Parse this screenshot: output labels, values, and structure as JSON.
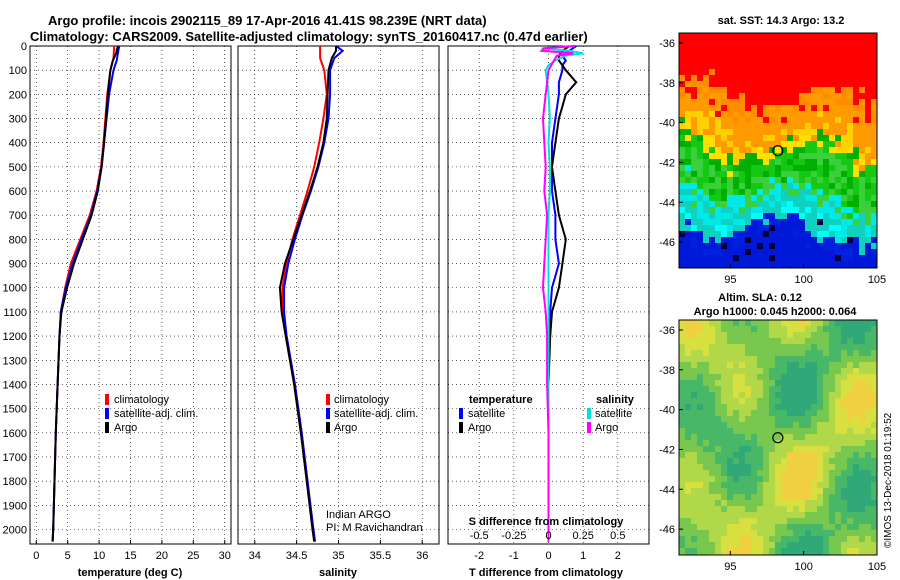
{
  "header": {
    "line1": "Argo profile: incois 2902115_89 17-Apr-2016 41.41S 98.239E (NRT data)",
    "line2": "Climatology: CARS2009. Satellite-adjusted climatology: synTS_20160417.nc (0.47d earlier)"
  },
  "colors": {
    "climatology": "#ff0000",
    "satellite_adj": "#0000ff",
    "argo": "#000000",
    "sal_satellite": "#00e0e0",
    "sal_argo": "#ff00ff"
  },
  "chart_data": [
    {
      "id": "temperature",
      "type": "line",
      "xlabel": "temperature (deg C)",
      "xlim": [
        -1,
        31
      ],
      "xticks": [
        0,
        5,
        10,
        15,
        20,
        25,
        30
      ],
      "ylim": [
        2060,
        0
      ],
      "yticks": [
        0,
        100,
        200,
        300,
        400,
        500,
        600,
        700,
        800,
        900,
        1000,
        1100,
        1200,
        1300,
        1400,
        1500,
        1600,
        1700,
        1800,
        1900,
        2000
      ],
      "legend": [
        "climatology",
        "satellite-adj. clim.",
        "Argo"
      ],
      "series": [
        {
          "name": "climatology",
          "color": "#ff0000",
          "depth": [
            0,
            50,
            100,
            200,
            300,
            400,
            500,
            600,
            700,
            800,
            900,
            1000,
            1100,
            1200,
            1400,
            1600,
            1800,
            2000,
            2050
          ],
          "values": [
            12.4,
            12.3,
            11.8,
            11.3,
            11.0,
            10.7,
            10.3,
            9.6,
            8.5,
            7.0,
            5.5,
            4.6,
            3.9,
            3.7,
            3.4,
            3.1,
            2.9,
            2.7,
            2.6
          ]
        },
        {
          "name": "satellite-adj. clim.",
          "color": "#0000ff",
          "depth": [
            0,
            30,
            60,
            100,
            200,
            300,
            400,
            500,
            600,
            700,
            800,
            900,
            1000,
            1100,
            1200,
            1400,
            1600,
            1800,
            2000,
            2050
          ],
          "values": [
            13.2,
            13.0,
            12.8,
            12.3,
            11.6,
            11.2,
            10.8,
            10.4,
            9.7,
            8.7,
            7.2,
            5.8,
            4.7,
            3.9,
            3.7,
            3.4,
            3.1,
            2.9,
            2.7,
            2.6
          ]
        },
        {
          "name": "Argo",
          "color": "#000000",
          "depth": [
            0,
            30,
            60,
            100,
            200,
            300,
            400,
            500,
            600,
            700,
            800,
            900,
            1000,
            1100,
            1200,
            1400,
            1600,
            1800,
            2000,
            2050
          ],
          "values": [
            13.0,
            12.7,
            12.2,
            11.8,
            11.4,
            11.1,
            10.8,
            10.4,
            9.8,
            8.8,
            7.4,
            6.0,
            4.9,
            4.0,
            3.7,
            3.4,
            3.1,
            2.9,
            2.7,
            2.6
          ]
        }
      ]
    },
    {
      "id": "salinity",
      "type": "line",
      "xlabel": "salinity",
      "xlim": [
        33.8,
        36.2
      ],
      "xticks": [
        34,
        34.5,
        35,
        35.5,
        36
      ],
      "ylim": [
        2060,
        0
      ],
      "legend": [
        "climatology",
        "satellite-adj. clim.",
        "Argo"
      ],
      "series": [
        {
          "name": "climatology",
          "color": "#ff0000",
          "depth": [
            0,
            50,
            100,
            200,
            300,
            400,
            500,
            600,
            700,
            800,
            900,
            1000,
            1100,
            1200,
            1400,
            1600,
            1800,
            2000,
            2050
          ],
          "values": [
            34.78,
            34.78,
            34.83,
            34.86,
            34.82,
            34.77,
            34.71,
            34.63,
            34.54,
            34.45,
            34.38,
            34.33,
            34.33,
            34.38,
            34.48,
            34.56,
            34.63,
            34.7,
            34.72
          ]
        },
        {
          "name": "satellite-adj. clim.",
          "color": "#0000ff",
          "depth": [
            0,
            20,
            50,
            100,
            200,
            300,
            400,
            500,
            600,
            700,
            800,
            900,
            1000,
            1100,
            1200,
            1400,
            1600,
            1800,
            2000,
            2050
          ],
          "values": [
            34.97,
            35.05,
            34.95,
            34.9,
            34.9,
            34.88,
            34.83,
            34.76,
            34.67,
            34.57,
            34.48,
            34.4,
            34.35,
            34.35,
            34.38,
            34.48,
            34.56,
            34.63,
            34.7,
            34.72
          ]
        },
        {
          "name": "Argo",
          "color": "#000000",
          "depth": [
            0,
            20,
            50,
            100,
            200,
            300,
            400,
            500,
            600,
            700,
            800,
            900,
            1000,
            1100,
            1200,
            1400,
            1600,
            1800,
            2000,
            2050
          ],
          "values": [
            34.97,
            34.97,
            34.92,
            34.88,
            34.87,
            34.86,
            34.82,
            34.75,
            34.66,
            34.56,
            34.46,
            34.36,
            34.3,
            34.32,
            34.37,
            34.47,
            34.55,
            34.62,
            34.69,
            34.71
          ]
        }
      ],
      "annotation": [
        "Indian ARGO",
        "PI: M Ravichandran"
      ]
    },
    {
      "id": "difference",
      "type": "line",
      "xlabel": "T difference from climatology",
      "xlabel_top": "S difference from climatology",
      "xlim": [
        -2.9,
        2.9
      ],
      "xticks": [
        -2,
        -1,
        0,
        1,
        2
      ],
      "xticks_s_labels": [
        "-0.5",
        "-0.25",
        "0",
        "0.25",
        "0.5"
      ],
      "ylim": [
        2060,
        0
      ],
      "legend_left_title": "temperature",
      "legend_right_title": "salinity",
      "legend": [
        "satellite",
        "Argo",
        "satellite",
        "Argo"
      ],
      "series": [
        {
          "name": "T satellite",
          "color": "#0000ff",
          "depth": [
            0,
            20,
            40,
            60,
            80,
            100,
            150,
            200,
            300,
            400,
            500,
            600,
            700,
            800,
            900,
            1000,
            1100,
            1200,
            1400,
            1600,
            1800,
            2000,
            2050
          ],
          "values": [
            0.8,
            0.6,
            0.4,
            0.5,
            0.4,
            0.4,
            0.3,
            0.3,
            0.2,
            0.1,
            0.1,
            0.1,
            0.2,
            0.2,
            0.3,
            0.1,
            0.05,
            0.02,
            0.0,
            0.0,
            0.0,
            0.0,
            0.0
          ]
        },
        {
          "name": "T Argo",
          "color": "#000000",
          "depth": [
            0,
            20,
            40,
            60,
            80,
            100,
            150,
            200,
            250,
            300,
            400,
            500,
            600,
            700,
            800,
            900,
            1000,
            1100,
            1200,
            1400,
            1600,
            1800,
            2000,
            2050
          ],
          "values": [
            0.6,
            0.4,
            0.3,
            0.3,
            0.4,
            0.5,
            0.8,
            0.5,
            0.4,
            0.3,
            0.2,
            0.1,
            0.2,
            0.3,
            0.5,
            0.4,
            0.3,
            0.1,
            0.05,
            0.0,
            0.0,
            0.0,
            0.0,
            0.0
          ]
        },
        {
          "name": "S satellite",
          "color": "#00e0e0",
          "depth": [
            0,
            10,
            20,
            30,
            40,
            60,
            80,
            100,
            150,
            200,
            300,
            400,
            500,
            600,
            700,
            800,
            900,
            1000,
            1100,
            1200,
            1400,
            1600,
            1800,
            2000,
            2050
          ],
          "values": [
            0.19,
            -0.05,
            0.15,
            0.25,
            0.12,
            0.05,
            0.0,
            -0.02,
            -0.01,
            0.0,
            0.01,
            0.0,
            0.01,
            0.01,
            0.0,
            0.0,
            0.0,
            0.0,
            0.0,
            0.0,
            0.0,
            0.0,
            0.0,
            0.0,
            0.0
          ]
        },
        {
          "name": "S Argo",
          "color": "#ff00ff",
          "depth": [
            0,
            10,
            20,
            30,
            40,
            60,
            80,
            100,
            150,
            200,
            300,
            400,
            500,
            600,
            700,
            800,
            900,
            1000,
            1100,
            1200,
            1400,
            1600,
            1800,
            2000,
            2050
          ],
          "values": [
            0.19,
            -0.03,
            -0.05,
            0.18,
            0.06,
            0.04,
            0.02,
            0.0,
            -0.01,
            -0.02,
            -0.04,
            -0.03,
            -0.02,
            -0.03,
            -0.01,
            -0.02,
            -0.03,
            -0.04,
            -0.02,
            -0.01,
            -0.01,
            0.0,
            0.0,
            0.0,
            0.0
          ]
        }
      ]
    },
    {
      "id": "sst_map",
      "type": "heatmap",
      "title": "sat. SST: 14.3 Argo: 13.2",
      "xticks": [
        95,
        100,
        105
      ],
      "yticks": [
        -36,
        -38,
        -40,
        -42,
        -44,
        -46
      ],
      "xlim": [
        91.5,
        105
      ],
      "ylim": [
        -47.3,
        -35.5
      ],
      "argo_point": {
        "lon": 98.239,
        "lat": -41.41
      }
    },
    {
      "id": "sla_map",
      "type": "heatmap",
      "title_line1": "Altim. SLA: 0.12",
      "title_line2": "Argo h1000: 0.045 h2000: 0.064",
      "xticks": [
        95,
        100,
        105
      ],
      "yticks": [
        -36,
        -38,
        -40,
        -42,
        -44,
        -46
      ],
      "xlim": [
        91.5,
        105
      ],
      "ylim": [
        -47.3,
        -35.5
      ],
      "argo_point": {
        "lon": 98.239,
        "lat": -41.41
      }
    }
  ],
  "footer": {
    "imos_stamp": "©IMOS 13-Dec-2018 01:19:52"
  }
}
